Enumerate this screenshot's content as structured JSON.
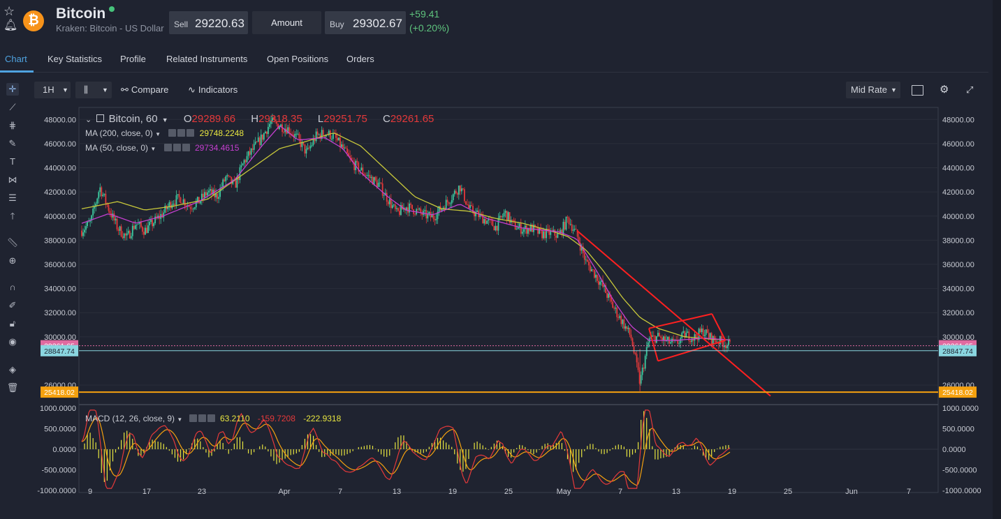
{
  "header": {
    "name": "Bitcoin",
    "subtitle": "Kraken: Bitcoin - US Dollar",
    "sell_label": "Sell",
    "sell_value": "29220.63",
    "amount_label": "Amount",
    "buy_label": "Buy",
    "buy_value": "29302.67",
    "change_abs": "+59.41",
    "change_pct": "(+0.20%)",
    "logo_glyph": "₿",
    "icons": [
      "star-icon",
      "bell-icon"
    ]
  },
  "tabs": [
    "Chart",
    "Key Statistics",
    "Profile",
    "Related Instruments",
    "Open Positions",
    "Orders"
  ],
  "toolbar": {
    "interval": "1H",
    "compare": "Compare",
    "indicators": "Indicators",
    "rate_mode": "Mid Rate"
  },
  "legend": {
    "symbol": "Bitcoin, 60",
    "o_label": "O",
    "o": "29289.66",
    "h_label": "H",
    "h": "29318.35",
    "l_label": "L",
    "l": "29251.75",
    "c_label": "C",
    "c": "29261.65",
    "ma200_label": "MA (200, close, 0)",
    "ma200_value": "29748.2248",
    "ma50_label": "MA (50, close, 0)",
    "ma50_value": "29734.4615",
    "macd_label": "MACD (12, 26, close, 9)",
    "macd_hist": "63.2110",
    "macd_line": "-159.7208",
    "macd_signal": "-222.9318"
  },
  "price_badges": {
    "last": "29261.65",
    "level_2": "28847.74",
    "level_3": "25418.02"
  },
  "colors": {
    "up": "#3dc9a0",
    "down": "#e5393a",
    "ma200": "#c8c83a",
    "ma50": "#c53fd0",
    "orange_line": "#f5a10f",
    "cyan_line": "#8ad6e0",
    "pink_badge": "#e06aa0",
    "accent": "#4fa3e0"
  },
  "chart_data": {
    "type": "candlestick",
    "title": "Bitcoin, 60",
    "y_ticks": [
      "48000.00",
      "46000.00",
      "44000.00",
      "42000.00",
      "40000.00",
      "38000.00",
      "36000.00",
      "34000.00",
      "32000.00",
      "30000.00",
      "26000.00"
    ],
    "ylim": [
      24500,
      49000
    ],
    "x_ticks": [
      "9",
      "17",
      "23",
      "Apr",
      "7",
      "13",
      "19",
      "25",
      "May",
      "7",
      "13",
      "19",
      "25",
      "Jun",
      "7"
    ],
    "macd_ticks": [
      "1000.0000",
      "500.0000",
      "0.0000",
      "-500.0000",
      "-1000.0000"
    ],
    "macd_ylim": [
      -1050,
      1050
    ],
    "price_path": [
      [
        0,
        38800
      ],
      [
        2,
        39500
      ],
      [
        4,
        42400
      ],
      [
        6,
        40600
      ],
      [
        8,
        39000
      ],
      [
        10,
        38200
      ],
      [
        12,
        39400
      ],
      [
        14,
        38800
      ],
      [
        16,
        39500
      ],
      [
        18,
        40200
      ],
      [
        20,
        41200
      ],
      [
        22,
        41500
      ],
      [
        24,
        40800
      ],
      [
        26,
        41200
      ],
      [
        28,
        42000
      ],
      [
        30,
        41600
      ],
      [
        32,
        43200
      ],
      [
        34,
        42500
      ],
      [
        36,
        44500
      ],
      [
        38,
        45500
      ],
      [
        40,
        46500
      ],
      [
        42,
        47800
      ],
      [
        44,
        47500
      ],
      [
        46,
        47200
      ],
      [
        48,
        46400
      ],
      [
        50,
        45200
      ],
      [
        52,
        46600
      ],
      [
        54,
        46900
      ],
      [
        56,
        46600
      ],
      [
        58,
        45600
      ],
      [
        60,
        44400
      ],
      [
        62,
        43800
      ],
      [
        64,
        43200
      ],
      [
        66,
        42600
      ],
      [
        68,
        41400
      ],
      [
        70,
        40200
      ],
      [
        72,
        40800
      ],
      [
        74,
        40500
      ],
      [
        76,
        40100
      ],
      [
        78,
        39900
      ],
      [
        80,
        40700
      ],
      [
        82,
        41500
      ],
      [
        84,
        42500
      ],
      [
        86,
        40600
      ],
      [
        88,
        40100
      ],
      [
        90,
        39600
      ],
      [
        92,
        39100
      ],
      [
        94,
        40300
      ],
      [
        96,
        39200
      ],
      [
        98,
        38900
      ],
      [
        100,
        39000
      ],
      [
        102,
        38500
      ],
      [
        104,
        38600
      ],
      [
        106,
        38400
      ],
      [
        108,
        39800
      ],
      [
        110,
        38400
      ],
      [
        112,
        36200
      ],
      [
        114,
        35200
      ],
      [
        116,
        34000
      ],
      [
        118,
        32500
      ],
      [
        120,
        31300
      ],
      [
        122,
        30000
      ],
      [
        124,
        26200
      ],
      [
        126,
        29800
      ],
      [
        128,
        30000
      ],
      [
        130,
        29600
      ],
      [
        132,
        29400
      ],
      [
        134,
        30200
      ],
      [
        136,
        29900
      ],
      [
        138,
        30500
      ],
      [
        140,
        29800
      ],
      [
        142,
        29600
      ],
      [
        144,
        29260
      ]
    ],
    "ma200_path": [
      [
        0,
        40600
      ],
      [
        8,
        41200
      ],
      [
        14,
        40500
      ],
      [
        20,
        40800
      ],
      [
        28,
        41400
      ],
      [
        36,
        43500
      ],
      [
        44,
        45600
      ],
      [
        50,
        46200
      ],
      [
        56,
        46900
      ],
      [
        62,
        45800
      ],
      [
        68,
        43700
      ],
      [
        74,
        41600
      ],
      [
        80,
        40600
      ],
      [
        86,
        40400
      ],
      [
        92,
        39800
      ],
      [
        98,
        39400
      ],
      [
        104,
        38800
      ],
      [
        108,
        38300
      ],
      [
        112,
        37200
      ],
      [
        116,
        35400
      ],
      [
        120,
        33300
      ],
      [
        124,
        31600
      ],
      [
        128,
        30700
      ],
      [
        134,
        30000
      ],
      [
        140,
        29800
      ],
      [
        144,
        29750
      ]
    ],
    "ma50_path": [
      [
        0,
        39400
      ],
      [
        6,
        40200
      ],
      [
        12,
        39400
      ],
      [
        18,
        40000
      ],
      [
        26,
        41200
      ],
      [
        34,
        43000
      ],
      [
        40,
        45800
      ],
      [
        44,
        47500
      ],
      [
        48,
        46300
      ],
      [
        54,
        46500
      ],
      [
        58,
        45600
      ],
      [
        62,
        43600
      ],
      [
        68,
        41600
      ],
      [
        72,
        40500
      ],
      [
        78,
        40100
      ],
      [
        84,
        41000
      ],
      [
        90,
        39800
      ],
      [
        98,
        39000
      ],
      [
        106,
        38700
      ],
      [
        110,
        38100
      ],
      [
        114,
        35700
      ],
      [
        118,
        33100
      ],
      [
        122,
        30900
      ],
      [
        126,
        29700
      ],
      [
        132,
        29700
      ],
      [
        138,
        29900
      ],
      [
        144,
        29730
      ]
    ],
    "channel": {
      "upper": [
        [
          126,
          30700
        ],
        [
          140,
          31900
        ]
      ],
      "lower": [
        [
          128,
          28000
        ],
        [
          143,
          29700
        ]
      ],
      "trend": [
        [
          110,
          38800
        ],
        [
          153,
          25100
        ]
      ]
    },
    "levels": {
      "orange": 25418.02,
      "cyan": 28847.74,
      "pink": 29261.65
    }
  }
}
